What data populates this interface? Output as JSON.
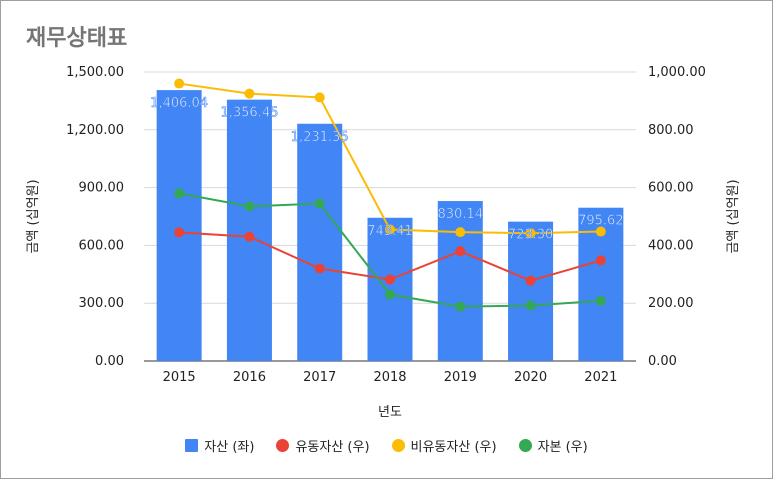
{
  "chart_data": {
    "type": "bar",
    "title": "재무상태표",
    "xlabel": "년도",
    "ylabel_left": "금액 (십억원)",
    "ylabel_right": "금액 (십억원)",
    "categories": [
      "2015",
      "2016",
      "2017",
      "2018",
      "2019",
      "2020",
      "2021"
    ],
    "ylim_left": [
      0,
      1500
    ],
    "ylim_right": [
      0,
      1000
    ],
    "yticks_left": [
      "0.00",
      "300.00",
      "600.00",
      "900.00",
      "1,200.00",
      "1,500.00"
    ],
    "yticks_right": [
      "0.00",
      "200.00",
      "400.00",
      "600.00",
      "800.00",
      "1,000.00"
    ],
    "grid": true,
    "legend_position": "bottom",
    "series": [
      {
        "name": "자산 (좌)",
        "type": "bar",
        "axis": "left",
        "color": "#4285f4",
        "values": [
          1406.04,
          1356.45,
          1231.35,
          743.41,
          830.14,
          723.3,
          795.62
        ],
        "data_labels": [
          "1,406.04",
          "1,356.45",
          "1,231.35",
          "743.41",
          "830.14",
          "723.30",
          "795.62"
        ]
      },
      {
        "name": "유동자산 (우)",
        "type": "line",
        "axis": "right",
        "color": "#ea4335",
        "values": [
          445,
          430,
          320,
          282,
          380,
          278,
          348
        ]
      },
      {
        "name": "비유동자산 (우)",
        "type": "line",
        "axis": "right",
        "color": "#fbbc04",
        "values": [
          960,
          925,
          912,
          455,
          446,
          442,
          448
        ]
      },
      {
        "name": "자본 (우)",
        "type": "line",
        "axis": "right",
        "color": "#34a853",
        "values": [
          580,
          535,
          545,
          230,
          188,
          192,
          208
        ]
      }
    ]
  }
}
